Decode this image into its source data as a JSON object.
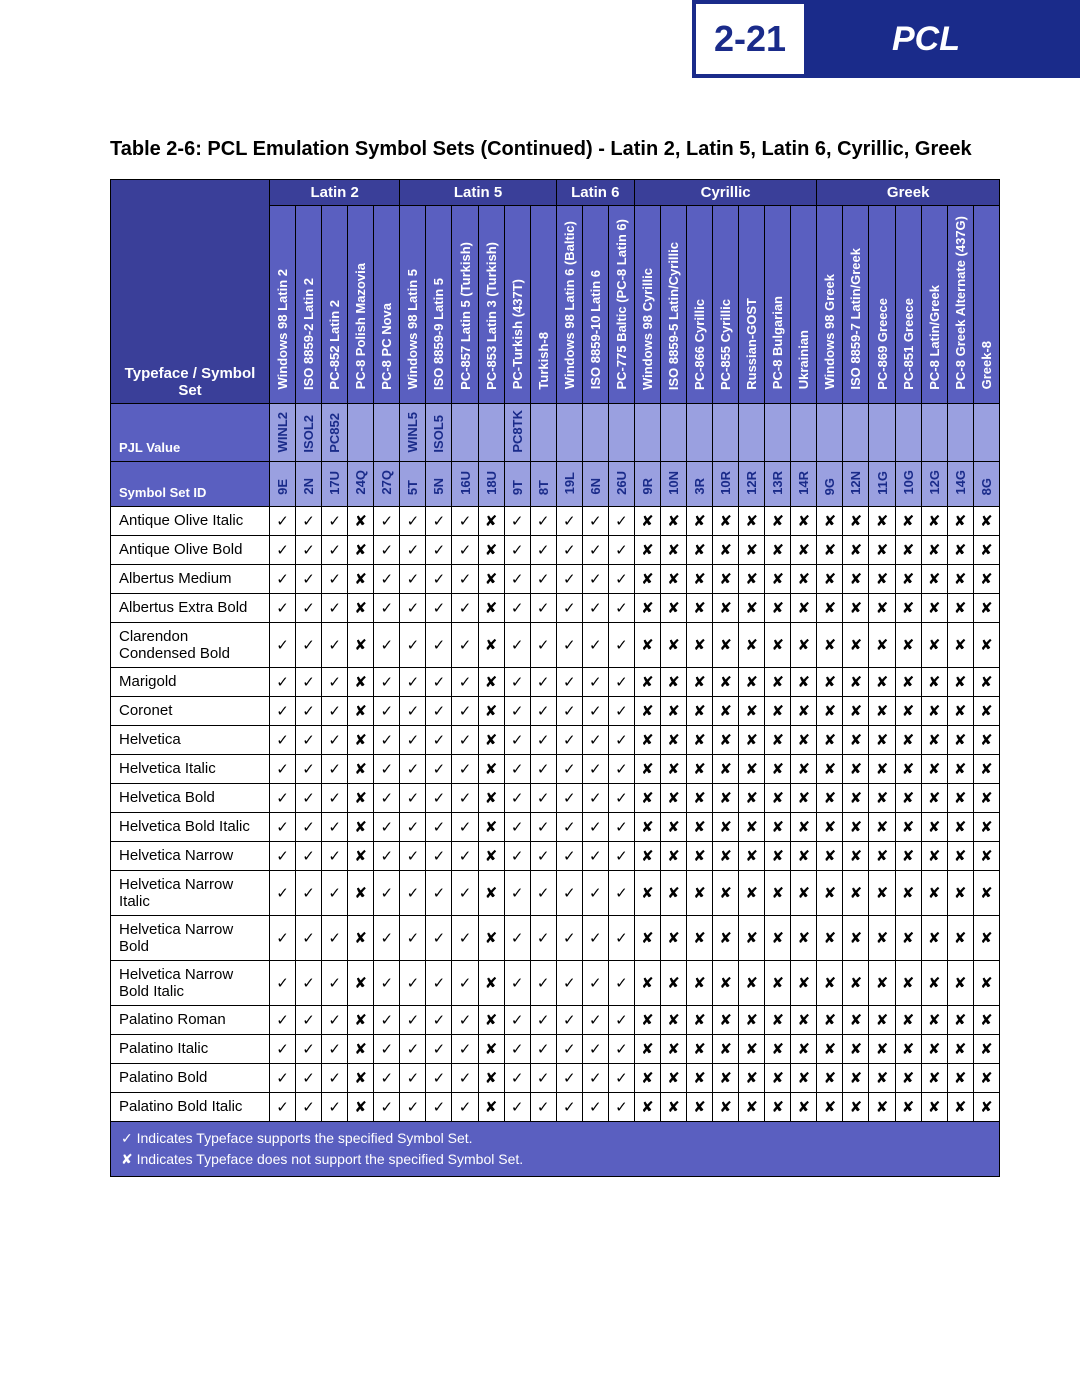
{
  "header": {
    "page_number": "2-21",
    "brand": "PCL",
    "brand_bg": "#1a2b8a"
  },
  "caption": "Table 2-6:  PCL Emulation Symbol Sets (Continued) - Latin 2, Latin 5, Latin 6, Cyrillic, Greek",
  "row_header_labels": {
    "typeface": "Typeface / Symbol Set",
    "pjl": "PJL Value",
    "sid": "Symbol Set ID"
  },
  "colors": {
    "group_bg": "#3a3f99",
    "header_bg": "#5a5fc0",
    "value_bg": "#9aa0e0",
    "value_fg": "#1a2b8a",
    "border": "#000000"
  },
  "marks": {
    "yes": "✓",
    "no": "✘"
  },
  "groups": [
    {
      "label": "Latin 2",
      "span": 5
    },
    {
      "label": "Latin 5",
      "span": 6
    },
    {
      "label": "Latin 6",
      "span": 3
    },
    {
      "label": "Cyrillic",
      "span": 7
    },
    {
      "label": "Greek",
      "span": 7
    }
  ],
  "columns": [
    {
      "name": "Windows 98 Latin 2",
      "pjl": "WINL2",
      "sid": "9E"
    },
    {
      "name": "ISO 8859-2 Latin 2",
      "pjl": "ISOL2",
      "sid": "2N"
    },
    {
      "name": "PC-852 Latin 2",
      "pjl": "PC852",
      "sid": "17U"
    },
    {
      "name": "PC-8 Polish Mazovia",
      "pjl": "",
      "sid": "24Q"
    },
    {
      "name": "PC-8 PC Nova",
      "pjl": "",
      "sid": "27Q"
    },
    {
      "name": "Windows 98 Latin 5",
      "pjl": "WINL5",
      "sid": "5T"
    },
    {
      "name": "ISO 8859-9 Latin 5",
      "pjl": "ISOL5",
      "sid": "5N"
    },
    {
      "name": "PC-857 Latin 5 (Turkish)",
      "pjl": "",
      "sid": "16U"
    },
    {
      "name": "PC-853 Latin 3 (Turkish)",
      "pjl": "",
      "sid": "18U"
    },
    {
      "name": "PC-Turkish (437T)",
      "pjl": "PC8TK",
      "sid": "9T"
    },
    {
      "name": "Turkish-8",
      "pjl": "",
      "sid": "8T"
    },
    {
      "name": "Windows 98 Latin 6 (Baltic)",
      "pjl": "",
      "sid": "19L"
    },
    {
      "name": "ISO 8859-10 Latin 6",
      "pjl": "",
      "sid": "6N"
    },
    {
      "name": "PC-775 Baltic (PC-8 Latin 6)",
      "pjl": "",
      "sid": "26U"
    },
    {
      "name": "Windows 98 Cyrillic",
      "pjl": "",
      "sid": "9R"
    },
    {
      "name": "ISO 8859-5 Latin/Cyrillic",
      "pjl": "",
      "sid": "10N"
    },
    {
      "name": "PC-866 Cyrillic",
      "pjl": "",
      "sid": "3R"
    },
    {
      "name": "PC-855 Cyrillic",
      "pjl": "",
      "sid": "10R"
    },
    {
      "name": "Russian-GOST",
      "pjl": "",
      "sid": "12R"
    },
    {
      "name": "PC-8 Bulgarian",
      "pjl": "",
      "sid": "13R"
    },
    {
      "name": "Ukrainian",
      "pjl": "",
      "sid": "14R"
    },
    {
      "name": "Windows 98 Greek",
      "pjl": "",
      "sid": "9G"
    },
    {
      "name": "ISO 8859-7 Latin/Greek",
      "pjl": "",
      "sid": "12N"
    },
    {
      "name": "PC-869 Greece",
      "pjl": "",
      "sid": "11G"
    },
    {
      "name": "PC-851 Greece",
      "pjl": "",
      "sid": "10G"
    },
    {
      "name": "PC-8 Latin/Greek",
      "pjl": "",
      "sid": "12G"
    },
    {
      "name": "PC-8 Greek Alternate (437G)",
      "pjl": "",
      "sid": "14G"
    },
    {
      "name": "Greek-8",
      "pjl": "",
      "sid": "8G"
    }
  ],
  "pattern": [
    1,
    1,
    1,
    0,
    1,
    1,
    1,
    1,
    0,
    1,
    1,
    1,
    1,
    1,
    0,
    0,
    0,
    0,
    0,
    0,
    0,
    0,
    0,
    0,
    0,
    0,
    0,
    0
  ],
  "typefaces": [
    "Antique Olive Italic",
    "Antique Olive Bold",
    "Albertus Medium",
    "Albertus Extra Bold",
    "Clarendon Condensed Bold",
    "Marigold",
    "Coronet",
    "Helvetica",
    "Helvetica Italic",
    "Helvetica Bold",
    "Helvetica Bold Italic",
    "Helvetica Narrow",
    "Helvetica Narrow Italic",
    "Helvetica Narrow Bold",
    "Helvetica Narrow Bold Italic",
    "Palatino Roman",
    "Palatino Italic",
    "Palatino Bold",
    "Palatino Bold Italic"
  ],
  "footer": {
    "line1": "✓ Indicates Typeface supports the specified Symbol Set.",
    "line2": "✘ Indicates Typeface does not support the specified Symbol Set."
  }
}
